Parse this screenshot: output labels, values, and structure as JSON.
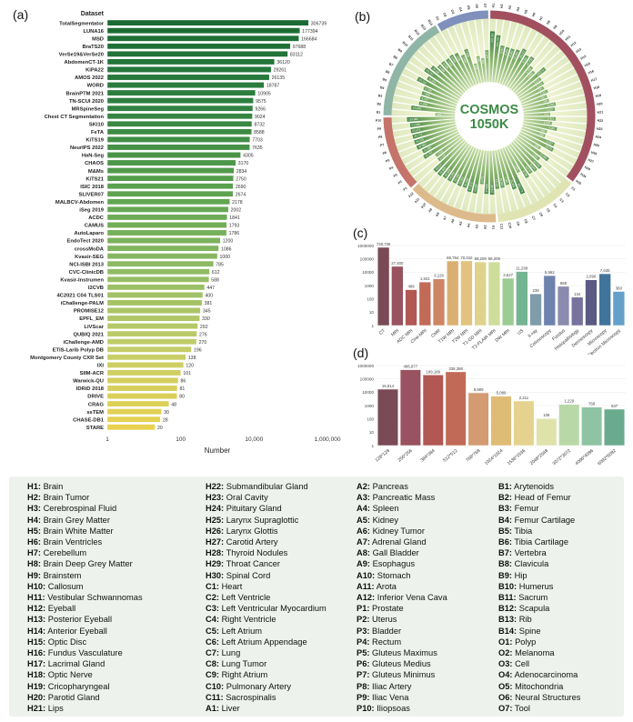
{
  "figure": {
    "panel_a_label": "(a)",
    "panel_b_label": "(b)",
    "panel_c_label": "(c)",
    "panel_d_label": "(d)"
  },
  "chart_data": [
    {
      "id": "a",
      "type": "bar",
      "orientation": "horizontal",
      "column_header": "Dataset",
      "xlabel": "Number",
      "scale": "log",
      "xlim": [
        1,
        1000000
      ],
      "xticks": [
        "1",
        "100",
        "10,000",
        "1,000,000"
      ],
      "color_stops": [
        "#1a6b33",
        "#2f8040",
        "#58a04e",
        "#8cba62",
        "#c3cd69",
        "#e8d14f"
      ],
      "categories": [
        "TotalSegmentator",
        "LUNA16",
        "MSD",
        "BraTS20",
        "VerSe19&VerSe20",
        "AbdomenCT-1K",
        "KiPA22",
        "AMOS 2022",
        "WORD",
        "BrainPTM 2021",
        "TN-SCUI 2020",
        "MRSpineSeg",
        "Chest CT Segmentation",
        "SKI10",
        "FeTA",
        "KiTS19",
        "NeurIPS 2022",
        "HaN-Seg",
        "CHAOS",
        "M&Ms",
        "KiTS21",
        "ISIC 2018",
        "SLIVER07",
        "MALBCV-Abdomen",
        "iSeg 2019",
        "ACDC",
        "CAMUS",
        "AutoLaparo",
        "EndoTect 2020",
        "crossMoDA",
        "Kvasir-SEG",
        "NCI-ISBI 2013",
        "CVC-ClinicDB",
        "Kvasir-Instrumen",
        "I2CVB",
        "4C2021 C04 TLS01",
        "iChallenge-PALM",
        "PROMISE12",
        "EPFL_EM",
        "LiVScar",
        "QUBIQ 2021",
        "iChallenge-AMD",
        "ETIS-Larib Polyp DB",
        "Montgomery County CXR Set",
        "IXI",
        "SIIM-ACR",
        "Warwick-QU",
        "IDRiD 2018",
        "DRIVE",
        "CRAG",
        "ssTEM",
        "CHASE-DB1",
        "STARE"
      ],
      "values": [
        306739,
        177394,
        166684,
        97688,
        83112,
        36120,
        29261,
        26135,
        18787,
        10905,
        9575,
        9266,
        9024,
        8732,
        8588,
        7703,
        7635,
        4305,
        3170,
        2834,
        2750,
        2690,
        2674,
        2178,
        2002,
        1841,
        1793,
        1786,
        1200,
        1086,
        1000,
        785,
        612,
        588,
        447,
        400,
        381,
        345,
        330,
        292,
        276,
        270,
        196,
        138,
        120,
        101,
        86,
        81,
        80,
        48,
        30,
        28,
        20
      ]
    },
    {
      "id": "b",
      "type": "radial-bar",
      "center_title": "COSMOS",
      "center_subtitle": "1050K",
      "center_color": "#3c8a46",
      "scale": "log",
      "rlim": [
        1,
        1000000
      ],
      "values_are_estimates": true,
      "groups": [
        {
          "name": "H",
          "count": 30,
          "color": "#a24f5f"
        },
        {
          "name": "C",
          "count": 11,
          "color": "#dfe4b2"
        },
        {
          "name": "A",
          "count": 12,
          "color": "#ddba8c"
        },
        {
          "name": "P",
          "count": 10,
          "color": "#c4746a"
        },
        {
          "name": "B",
          "count": 14,
          "color": "#8fb5a6"
        },
        {
          "name": "O",
          "count": 7,
          "color": "#7e90bb"
        }
      ],
      "labels": [
        "H1",
        "H2",
        "H3",
        "H4",
        "H5",
        "H6",
        "H7",
        "H8",
        "H9",
        "H10",
        "H11",
        "H12",
        "H13",
        "H14",
        "H15",
        "H16",
        "H17",
        "H18",
        "H19",
        "H20",
        "H21",
        "H22",
        "H23",
        "H24",
        "H25",
        "H26",
        "H27",
        "H28",
        "H29",
        "H30",
        "C1",
        "C2",
        "C3",
        "C4",
        "C5",
        "C6",
        "C7",
        "C8",
        "C9",
        "C10",
        "C11",
        "A1",
        "A2",
        "A3",
        "A4",
        "A5",
        "A6",
        "A7",
        "A8",
        "A9",
        "A10",
        "A11",
        "A12",
        "P1",
        "P2",
        "P3",
        "P4",
        "P5",
        "P6",
        "P7",
        "P8",
        "P9",
        "P10",
        "B1",
        "B2",
        "B3",
        "B4",
        "B5",
        "B6",
        "B7",
        "B8",
        "B9",
        "B10",
        "B11",
        "B12",
        "B13",
        "B14",
        "O1",
        "O2",
        "O3",
        "O4",
        "O5",
        "O6",
        "O7"
      ],
      "values": [
        241362,
        100794,
        9361,
        8361,
        8361,
        10361,
        24310,
        8361,
        12708,
        1786,
        1086,
        13274,
        1274,
        1274,
        731,
        1211,
        637,
        763,
        3108,
        2127,
        628,
        2421,
        1035,
        4301,
        456,
        406,
        6957,
        9575,
        525,
        12084,
        2051,
        10736,
        8274,
        6274,
        9736,
        1063,
        183778,
        31352,
        7062,
        10942,
        12137,
        45317,
        37069,
        3771,
        43850,
        41372,
        21332,
        23021,
        20250,
        24376,
        24343,
        33953,
        33117,
        2714,
        2310,
        31757,
        21352,
        49883,
        54315,
        54771,
        63471,
        61588,
        119381,
        118,
        46848,
        8343,
        8317,
        7908,
        8030,
        83112,
        11361,
        60717,
        24131,
        8698,
        8698,
        7466,
        9466,
        7666,
        2690,
        7635,
        134,
        690,
        360,
        2374
      ]
    },
    {
      "id": "c",
      "type": "bar",
      "orientation": "vertical",
      "scale": "log",
      "ylim": [
        1,
        1000000
      ],
      "yticks": [
        "1000000",
        "100000",
        "10000",
        "1000",
        "100",
        "10",
        "1"
      ],
      "categories": [
        "CT",
        "MRI",
        "ADC MRI",
        "Cine-MRI",
        "CMR",
        "T1W MRI",
        "T2W MRI",
        "T1-GD MRI",
        "T2-FLAIR MRI",
        "DW MRI",
        "US",
        "X-ray",
        "Colonoscopy",
        "Fundus",
        "Histopathology",
        "Dermoscopy",
        "Microscopy",
        "Electron Microscopy"
      ],
      "values": [
        729736,
        27400,
        489,
        1841,
        3126,
        69794,
        70042,
        58209,
        58209,
        3527,
        11268,
        239,
        5562,
        868,
        134,
        2690,
        7635,
        360
      ],
      "colors": [
        "#7a4a57",
        "#99525f",
        "#b25753",
        "#c16a57",
        "#cd8565",
        "#dbaf72",
        "#e2c27e",
        "#dfd38b",
        "#cedd9a",
        "#9ccb94",
        "#73b492",
        "#7f9cab",
        "#6d83ae",
        "#8b8bb0",
        "#77729e",
        "#5b5a82",
        "#41749b",
        "#64a0c8"
      ]
    },
    {
      "id": "d",
      "type": "bar",
      "orientation": "vertical",
      "scale": "log",
      "ylim": [
        1,
        1000000
      ],
      "yticks": [
        "1000000",
        "100000",
        "10000",
        "1000",
        "100",
        "10",
        "1"
      ],
      "categories": [
        "128*128",
        "256*256",
        "384*384",
        "512*512",
        "768*768",
        "1024*1024",
        "1536*1536",
        "2048*2048",
        "3072*3072",
        "4096*4096",
        "6092*6092"
      ],
      "values": [
        16914,
        486877,
        199189,
        338388,
        8989,
        5089,
        2211,
        108,
        1229,
        768,
        537
      ],
      "colors": [
        "#7a4a57",
        "#99525f",
        "#b25753",
        "#c16a57",
        "#d49a72",
        "#dfbc76",
        "#e5d28e",
        "#dfe3ab",
        "#b8d8a8",
        "#8ec4a4",
        "#6aab8e"
      ]
    }
  ],
  "legend": {
    "background": "#edf3ec",
    "columns": [
      [
        {
          "key": "H1",
          "label": "Brain"
        },
        {
          "key": "H2",
          "label": "Brain Tumor"
        },
        {
          "key": "H3",
          "label": "Cerebrospinal Fluid"
        },
        {
          "key": "H4",
          "label": "Brain Grey Matter"
        },
        {
          "key": "H5",
          "label": "Brain White Matter"
        },
        {
          "key": "H6",
          "label": "Brain Ventricles"
        },
        {
          "key": "H7",
          "label": "Cerebellum"
        },
        {
          "key": "H8",
          "label": "Brain Deep Grey Matter"
        },
        {
          "key": "H9",
          "label": "Brainstem"
        },
        {
          "key": "H10",
          "label": "Callosum"
        },
        {
          "key": "H11",
          "label": "Vestibular Schwannomas"
        },
        {
          "key": "H12",
          "label": "Eyeball"
        },
        {
          "key": "H13",
          "label": "Posterior Eyeball"
        },
        {
          "key": "H14",
          "label": "Anterior Eyeball"
        },
        {
          "key": "H15",
          "label": "Optic Disc"
        },
        {
          "key": "H16",
          "label": "Fundus Vasculature"
        },
        {
          "key": "H17",
          "label": "Lacrimal Gland"
        },
        {
          "key": "H18",
          "label": "Optic Nerve"
        },
        {
          "key": "H19",
          "label": "Cricopharyngeal"
        },
        {
          "key": "H20",
          "label": "Parotid Gland"
        },
        {
          "key": "H21",
          "label": "Lips"
        }
      ],
      [
        {
          "key": "H22",
          "label": "Submandibular Gland"
        },
        {
          "key": "H23",
          "label": "Oral Cavity"
        },
        {
          "key": "H24",
          "label": "Pituitary Gland"
        },
        {
          "key": "H25",
          "label": "Larynx Supraglottic"
        },
        {
          "key": "H26",
          "label": "Larynx Glottis"
        },
        {
          "key": "H27",
          "label": "Carotid Artery"
        },
        {
          "key": "H28",
          "label": "Thyroid Nodules"
        },
        {
          "key": "H29",
          "label": "Throat Cancer"
        },
        {
          "key": "H30",
          "label": "Spinal Cord"
        },
        {
          "key": "C1",
          "label": "Heart"
        },
        {
          "key": "C2",
          "label": "Left Ventricle"
        },
        {
          "key": "C3",
          "label": "Left Ventricular Myocardium"
        },
        {
          "key": "C4",
          "label": "Right Ventricle"
        },
        {
          "key": "C5",
          "label": "Left Atrium"
        },
        {
          "key": "C6",
          "label": "Left Atrium Appendage"
        },
        {
          "key": "C7",
          "label": "Lung"
        },
        {
          "key": "C8",
          "label": "Lung Tumor"
        },
        {
          "key": "C9",
          "label": "Right Atrium"
        },
        {
          "key": "C10",
          "label": "Pulmonary Artery"
        },
        {
          "key": "C11",
          "label": "Sacrospinalis"
        },
        {
          "key": "A1",
          "label": "Liver"
        }
      ],
      [
        {
          "key": "A2",
          "label": "Pancreas"
        },
        {
          "key": "A3",
          "label": "Pancreatic Mass"
        },
        {
          "key": "A4",
          "label": "Spleen"
        },
        {
          "key": "A5",
          "label": "Kidney"
        },
        {
          "key": "A6",
          "label": "Kidney Tumor"
        },
        {
          "key": "A7",
          "label": "Adrenal Gland"
        },
        {
          "key": "A8",
          "label": "Gall Bladder"
        },
        {
          "key": "A9",
          "label": "Esophagus"
        },
        {
          "key": "A10",
          "label": "Stomach"
        },
        {
          "key": "A11",
          "label": "Arota"
        },
        {
          "key": "A12",
          "label": "Inferior Vena Cava"
        },
        {
          "key": "P1",
          "label": "Prostate"
        },
        {
          "key": "P2",
          "label": "Uterus"
        },
        {
          "key": "P3",
          "label": "Bladder"
        },
        {
          "key": "P4",
          "label": "Rectum"
        },
        {
          "key": "P5",
          "label": "Gluteus Maximus"
        },
        {
          "key": "P6",
          "label": "Gluteus Medius"
        },
        {
          "key": "P7",
          "label": "Gluteus Minimus"
        },
        {
          "key": "P8",
          "label": "Iliac Artery"
        },
        {
          "key": "P9",
          "label": "Iliac Vena"
        },
        {
          "key": "P10",
          "label": "Iliopsoas"
        }
      ],
      [
        {
          "key": "B1",
          "label": "Arytenoids"
        },
        {
          "key": "B2",
          "label": "Head of Femur"
        },
        {
          "key": "B3",
          "label": "Femur"
        },
        {
          "key": "B4",
          "label": "Femur Cartilage"
        },
        {
          "key": "B5",
          "label": "Tibia"
        },
        {
          "key": "B6",
          "label": "Tibia Cartilage"
        },
        {
          "key": "B7",
          "label": "Vertebra"
        },
        {
          "key": "B8",
          "label": "Clavicula"
        },
        {
          "key": "B9",
          "label": "Hip"
        },
        {
          "key": "B10",
          "label": "Humerus"
        },
        {
          "key": "B11",
          "label": "Sacrum"
        },
        {
          "key": "B12",
          "label": "Scapula"
        },
        {
          "key": "B13",
          "label": "Rib"
        },
        {
          "key": "B14",
          "label": "Spine"
        },
        {
          "key": "O1",
          "label": "Polyp"
        },
        {
          "key": "O2",
          "label": "Melanoma"
        },
        {
          "key": "O3",
          "label": "Cell"
        },
        {
          "key": "O4",
          "label": "Adenocarcinoma"
        },
        {
          "key": "O5",
          "label": "Mitochondria"
        },
        {
          "key": "O6",
          "label": "Neural Structures"
        },
        {
          "key": "O7",
          "label": "Tool"
        }
      ]
    ]
  }
}
